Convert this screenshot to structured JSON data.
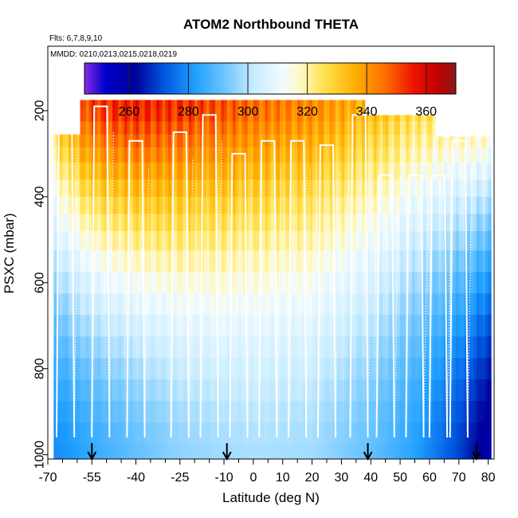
{
  "chart_data": {
    "type": "heatmap",
    "title": "ATOM2 Northbound THETA",
    "subtitle_flights": "Flts: 6,7,8,9,10",
    "subtitle_dates": "MMDD: 0210,0213,0215,0218,0219",
    "xlabel": "Latitude (deg N)",
    "ylabel": "PSXC (mbar)",
    "xlim": [
      -70,
      82
    ],
    "ylim": [
      1010,
      50
    ],
    "x_tick_values": [
      -70,
      -55,
      -40,
      -25,
      -10,
      0,
      10,
      20,
      30,
      40,
      50,
      60,
      70,
      80
    ],
    "x_tick_labels": [
      "-70",
      "-55",
      "-40",
      "-25",
      "-10",
      "0",
      "10",
      "20",
      "30",
      "40",
      "50",
      "60",
      "70",
      "80"
    ],
    "x_minor_ticks": [
      -65,
      -60,
      -50,
      -45,
      -35,
      -30,
      -20,
      -15,
      -5,
      5,
      15,
      25,
      35,
      45,
      55,
      65,
      75
    ],
    "y_ticks": [
      200,
      400,
      600,
      800,
      1000
    ],
    "y_tick_labels": [
      "200",
      "400",
      "600",
      "800",
      "1000"
    ],
    "colorbar": {
      "range": [
        245,
        370
      ],
      "ticks": [
        260,
        280,
        300,
        320,
        340,
        360
      ],
      "tick_labels": [
        "260",
        "280",
        "300",
        "320",
        "340",
        "360"
      ],
      "dividers": [
        260,
        280,
        300,
        320,
        340,
        360
      ],
      "color_stops": [
        {
          "v": 245,
          "c": "#8a2be2"
        },
        {
          "v": 252,
          "c": "#0000cd"
        },
        {
          "v": 262,
          "c": "#000099"
        },
        {
          "v": 272,
          "c": "#0057e0"
        },
        {
          "v": 282,
          "c": "#1e9fff"
        },
        {
          "v": 292,
          "c": "#6cc4ff"
        },
        {
          "v": 302,
          "c": "#c8ecff"
        },
        {
          "v": 312,
          "c": "#f2fbff"
        },
        {
          "v": 318,
          "c": "#fff8c0"
        },
        {
          "v": 326,
          "c": "#ffe14d"
        },
        {
          "v": 336,
          "c": "#ffb000"
        },
        {
          "v": 346,
          "c": "#ff7000"
        },
        {
          "v": 356,
          "c": "#ee1100"
        },
        {
          "v": 364,
          "c": "#c00000"
        },
        {
          "v": 370,
          "c": "#8b1a1a"
        }
      ]
    },
    "theta_field": {
      "surface_theta": [
        {
          "lat": -70,
          "theta": 278
        },
        {
          "lat": -55,
          "theta": 285
        },
        {
          "lat": -40,
          "theta": 291
        },
        {
          "lat": -25,
          "theta": 296
        },
        {
          "lat": -10,
          "theta": 298
        },
        {
          "lat": 0,
          "theta": 299
        },
        {
          "lat": 20,
          "theta": 298
        },
        {
          "lat": 40,
          "theta": 291
        },
        {
          "lat": 55,
          "theta": 283
        },
        {
          "lat": 70,
          "theta": 270
        },
        {
          "lat": 80,
          "theta": 258
        }
      ],
      "theta_at_200mbar": [
        {
          "lat": -70,
          "theta": 330
        },
        {
          "lat": -55,
          "theta": 352
        },
        {
          "lat": -40,
          "theta": 355
        },
        {
          "lat": -20,
          "theta": 352
        },
        {
          "lat": 0,
          "theta": 346
        },
        {
          "lat": 20,
          "theta": 342
        },
        {
          "lat": 40,
          "theta": 334
        },
        {
          "lat": 55,
          "theta": 327
        },
        {
          "lat": 70,
          "theta": 325
        },
        {
          "lat": 80,
          "theta": 325
        }
      ],
      "profile_levels_mbar": [
        180,
        210,
        240,
        270,
        300,
        340,
        380,
        420,
        460,
        500,
        550,
        600,
        650,
        700,
        750,
        800,
        850,
        900,
        950,
        1000
      ],
      "coverage": [
        {
          "lat_start": -68,
          "lat_end": -59,
          "top_mbar": 250
        },
        {
          "lat_start": -59,
          "lat_end": 38,
          "top_mbar": 175
        },
        {
          "lat_start": 38,
          "lat_end": 62,
          "top_mbar": 210
        },
        {
          "lat_start": 62,
          "lat_end": 81,
          "top_mbar": 260
        }
      ]
    },
    "flight_track": {
      "shelves": [
        {
          "lat": -64,
          "p": 195
        },
        {
          "lat": -52,
          "p": 190
        },
        {
          "lat": -40,
          "p": 270
        },
        {
          "lat": -25,
          "p": 250
        },
        {
          "lat": -15,
          "p": 210
        },
        {
          "lat": -5,
          "p": 300
        },
        {
          "lat": 5,
          "p": 270
        },
        {
          "lat": 15,
          "p": 270
        },
        {
          "lat": 25,
          "p": 280
        },
        {
          "lat": 36,
          "p": 210
        },
        {
          "lat": 45,
          "p": 350
        },
        {
          "lat": 55,
          "p": 350
        },
        {
          "lat": 63,
          "p": 350
        },
        {
          "lat": 70,
          "p": 270
        }
      ]
    },
    "annotations": {
      "arrows_lat": [
        -55,
        -9,
        39,
        76
      ]
    }
  }
}
